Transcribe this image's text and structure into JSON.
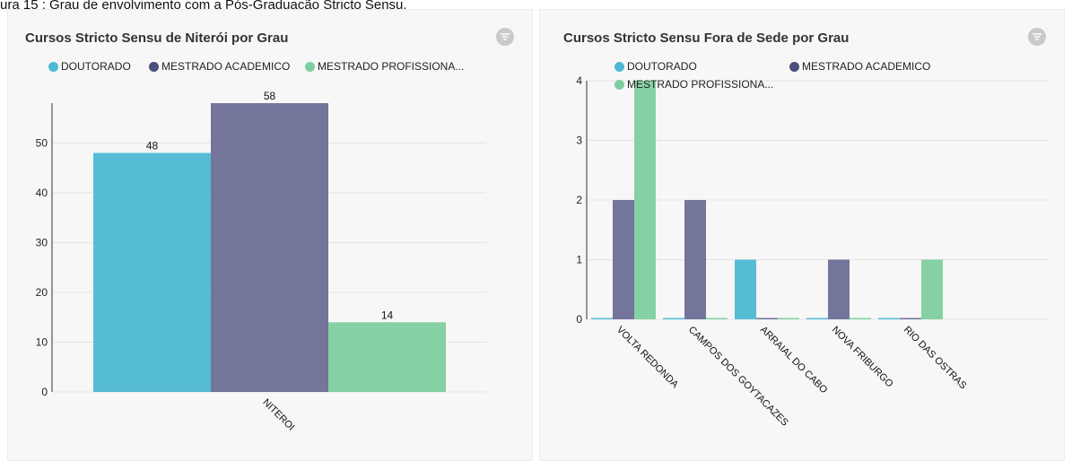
{
  "caption": "ura 15 : Grau de envolvimento com a Pós-Graduação Stricto Sensu.",
  "colors": {
    "doutorado": "#4db8d4",
    "mestrado_academico": "#6b6e96",
    "mestrado_profissional": "#7ecfa0"
  },
  "icons": {
    "filter": "filter-icon"
  },
  "chart_data": [
    {
      "type": "bar",
      "title": "Cursos Stricto Sensu de Niterói por Grau",
      "categories": [
        "NITEROI"
      ],
      "legend": [
        "DOUTORADO",
        "MESTRADO ACADEMICO",
        "MESTRADO PROFISSIONA..."
      ],
      "series": [
        {
          "name": "DOUTORADO",
          "values": [
            48
          ]
        },
        {
          "name": "MESTRADO ACADEMICO",
          "values": [
            58
          ]
        },
        {
          "name": "MESTRADO PROFISSIONA...",
          "values": [
            14
          ]
        }
      ],
      "yticks": [
        "0",
        "10",
        "20",
        "30",
        "40",
        "50"
      ],
      "ylim": [
        0,
        58
      ],
      "data_labels": true,
      "grid": true,
      "legend_position": "top-left"
    },
    {
      "type": "bar",
      "title": "Cursos Stricto Sensu Fora de Sede por Grau",
      "categories": [
        "VOLTA REDONDA",
        "CAMPOS DOS GOYTACAZES",
        "ARRAIAL DO CABO",
        "NOVA FRIBURGO",
        "RIO DAS OSTRAS"
      ],
      "legend": [
        "DOUTORADO",
        "MESTRADO ACADEMICO",
        "MESTRADO PROFISSIONA..."
      ],
      "series": [
        {
          "name": "DOUTORADO",
          "values": [
            0,
            0,
            1,
            0,
            0
          ]
        },
        {
          "name": "MESTRADO ACADEMICO",
          "values": [
            2,
            2,
            0,
            1,
            0
          ]
        },
        {
          "name": "MESTRADO PROFISSIONA...",
          "values": [
            4,
            0,
            0,
            0,
            1
          ]
        }
      ],
      "yticks": [
        "0",
        "1",
        "2",
        "3",
        "4"
      ],
      "ylim": [
        0,
        4
      ],
      "data_labels": false,
      "grid": true,
      "legend_position": "top-left"
    }
  ]
}
